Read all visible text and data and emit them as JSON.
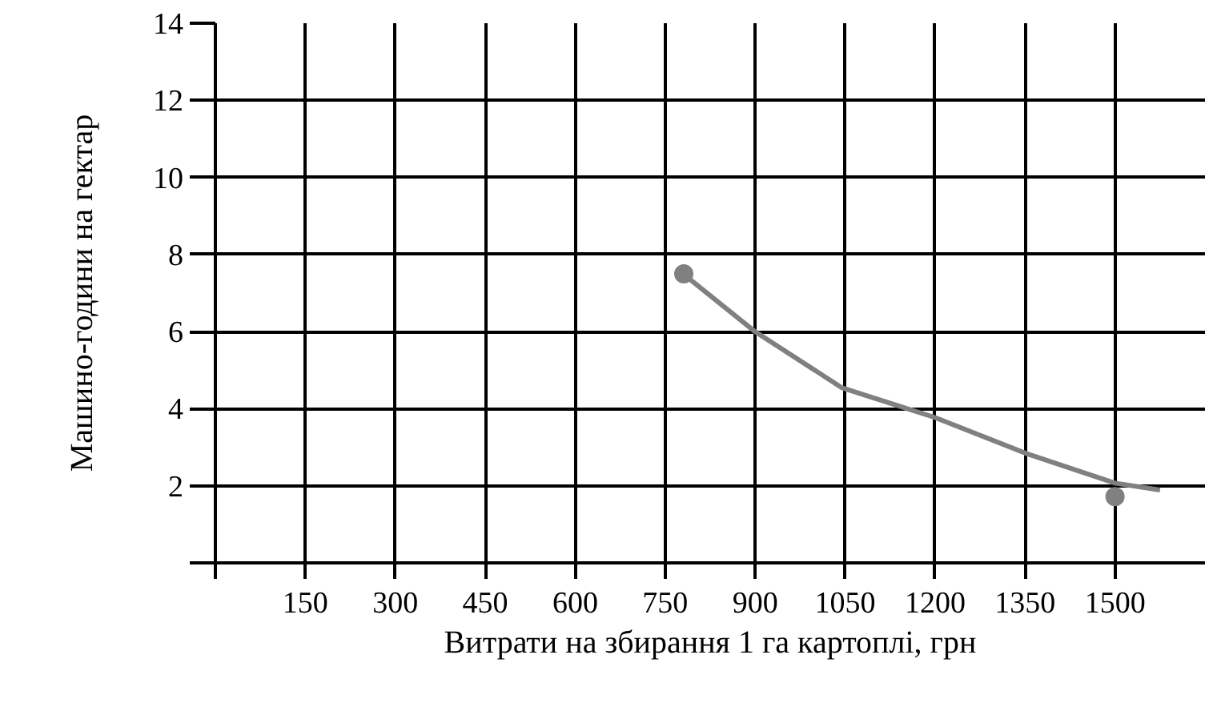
{
  "chart_data": {
    "type": "scatter",
    "xlabel": "Витрати на збирання 1 га картоплі, грн",
    "ylabel": "Машино-години на гектар",
    "xlim": [
      0,
      1650
    ],
    "ylim": [
      0,
      14
    ],
    "xticks": [
      {
        "value": 0,
        "label": null
      },
      150,
      300,
      450,
      600,
      750,
      900,
      1050,
      1200,
      1350,
      1500
    ],
    "yticks": [
      {
        "value": 0,
        "label": null
      },
      2,
      4,
      6,
      8,
      10,
      12,
      14
    ],
    "grid": true,
    "marker": "circle",
    "series": [
      {
        "color": "#808080",
        "x": [
          781,
          1500
        ],
        "values": [
          7.5,
          1.72
        ]
      },
      {
        "type": "line",
        "color": "#808080",
        "marker": "none",
        "x": [
          790,
          898,
          1045,
          1200,
          1350,
          1500,
          1575
        ],
        "values": [
          7.37,
          6.02,
          4.54,
          3.77,
          2.85,
          2.07,
          1.89
        ]
      }
    ]
  }
}
